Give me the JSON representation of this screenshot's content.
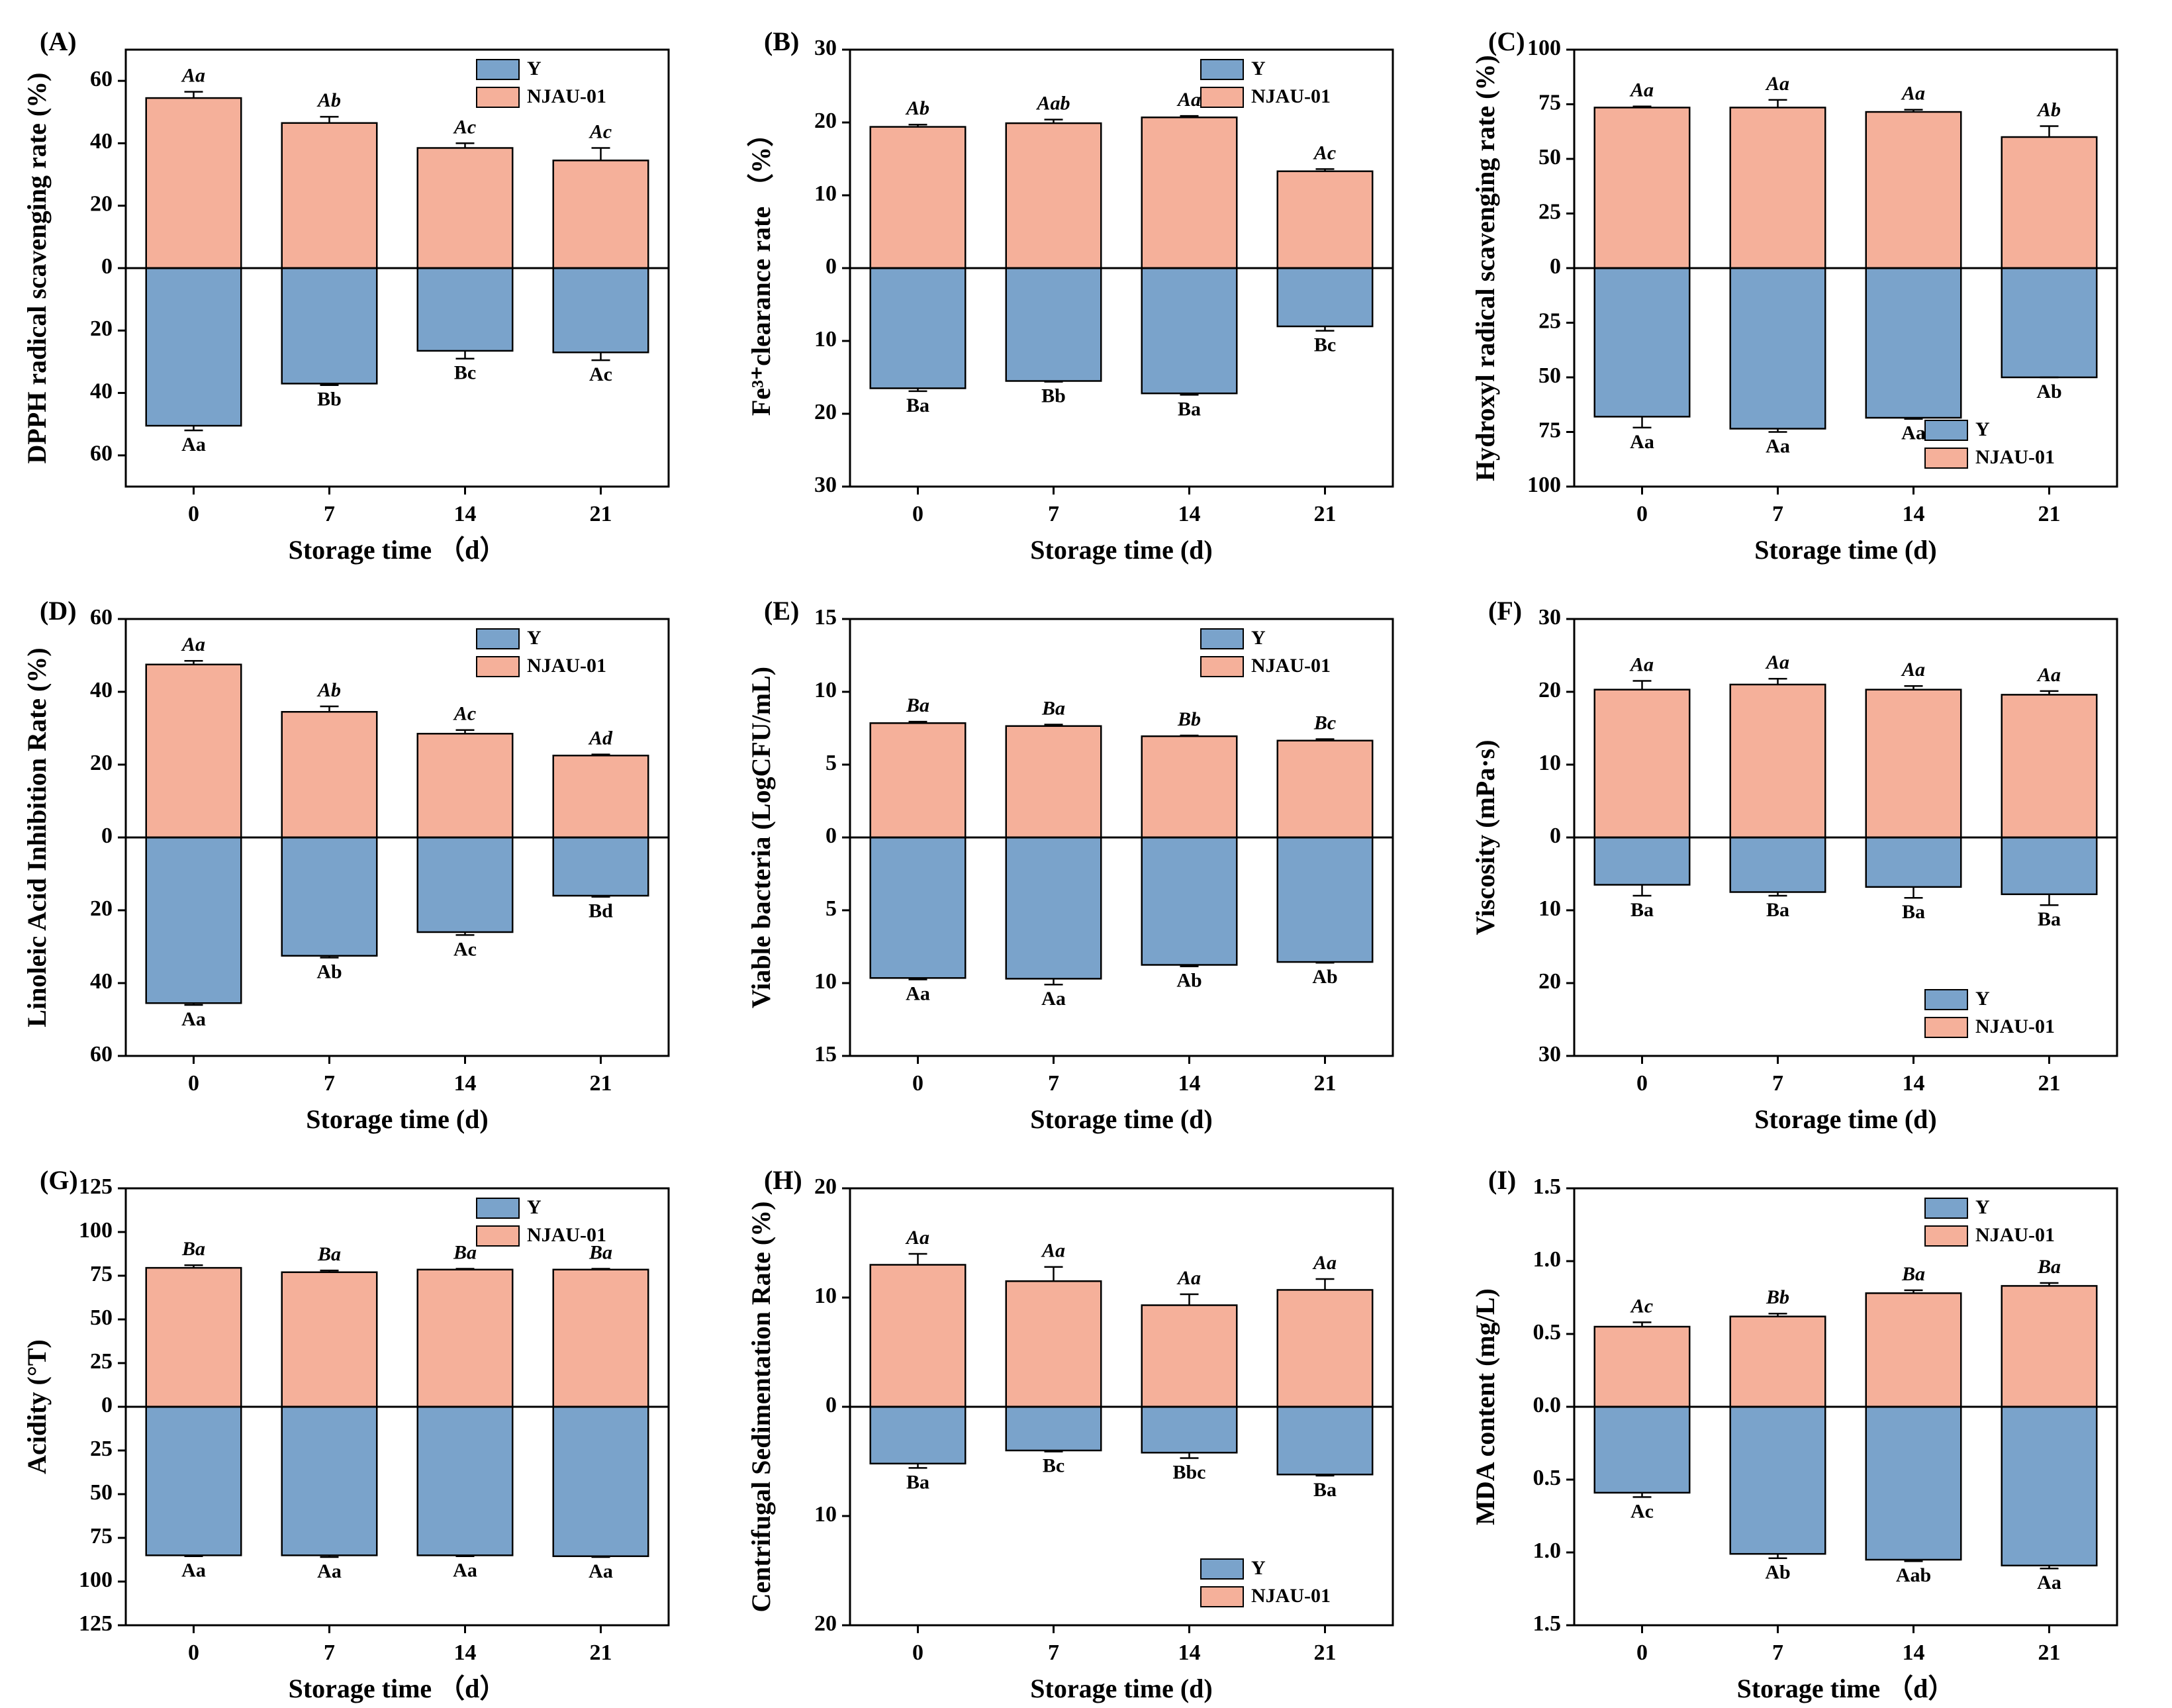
{
  "chart_data": [
    {
      "type": "bar",
      "label": "(A)",
      "ylabel": "DPPH radical scavenging rate (%)",
      "xlabel": "Storage time （d）",
      "categories": [
        "0",
        "7",
        "14",
        "21"
      ],
      "legend": "top-right",
      "ylim": [
        -70,
        70
      ],
      "yticks": [
        {
          "value": 60,
          "label": "60"
        },
        {
          "value": 40,
          "label": "40"
        },
        {
          "value": 20,
          "label": "20"
        },
        0,
        {
          "value": -20,
          "label": "20"
        },
        {
          "value": -40,
          "label": "40"
        },
        {
          "value": -60,
          "label": "60"
        }
      ],
      "series": [
        {
          "name": "Y",
          "color": "#7aa3cb",
          "values": [
            -50.5,
            -37,
            -26.5,
            -27
          ],
          "errors": [
            1.5,
            0.5,
            2.5,
            2.5
          ],
          "letters": [
            "Aa",
            "Bb",
            "Bc",
            "Ac"
          ]
        },
        {
          "name": "NJAU-01",
          "color": "#f5b09a",
          "values": [
            54.5,
            46.5,
            38.5,
            34.5
          ],
          "errors": [
            2,
            2,
            1.5,
            4
          ],
          "letters": [
            "Aa",
            "Ab",
            "Ac",
            "Ac"
          ]
        }
      ]
    },
    {
      "type": "bar",
      "label": "(B)",
      "ylabel": "Fe³⁺clearance rate （%）",
      "xlabel": "Storage time (d)",
      "categories": [
        "0",
        "7",
        "14",
        "21"
      ],
      "legend": "top-right",
      "ylim": [
        -30,
        30
      ],
      "yticks": [
        30,
        20,
        10,
        0,
        {
          "value": -10,
          "label": "10"
        },
        {
          "value": -20,
          "label": "20"
        },
        {
          "value": -30,
          "label": "30"
        }
      ],
      "series": [
        {
          "name": "Y",
          "color": "#7aa3cb",
          "values": [
            -16.5,
            -15.5,
            -17.2,
            -8
          ],
          "errors": [
            0.4,
            0.1,
            0.2,
            0.6
          ],
          "letters": [
            "Ba",
            "Bb",
            "Ba",
            "Bc"
          ]
        },
        {
          "name": "NJAU-01",
          "color": "#f5b09a",
          "values": [
            19.4,
            19.9,
            20.7,
            13.3
          ],
          "errors": [
            0.3,
            0.5,
            0.2,
            0.3
          ],
          "letters": [
            "Ab",
            "Aab",
            "Aa",
            "Ac"
          ]
        }
      ]
    },
    {
      "type": "bar",
      "label": "(C)",
      "ylabel": "Hydroxyl radical scavenging rate (%)",
      "xlabel": "Storage time (d)",
      "categories": [
        "0",
        "7",
        "14",
        "21"
      ],
      "legend": "bottom-right",
      "ylim": [
        -100,
        100
      ],
      "yticks": [
        100,
        75,
        50,
        25,
        0,
        {
          "value": -25,
          "label": "25"
        },
        {
          "value": -50,
          "label": "50"
        },
        {
          "value": -75,
          "label": "75"
        },
        {
          "value": -100,
          "label": "100"
        }
      ],
      "series": [
        {
          "name": "Y",
          "color": "#7aa3cb",
          "values": [
            -68,
            -73.5,
            -68.5,
            -50
          ],
          "errors": [
            5,
            1.5,
            0.5,
            0
          ],
          "letters": [
            "Aa",
            "Aa",
            "Aa",
            "Ab"
          ]
        },
        {
          "name": "NJAU-01",
          "color": "#f5b09a",
          "values": [
            73.5,
            73.5,
            71.5,
            60
          ],
          "errors": [
            0.5,
            3.5,
            1,
            5
          ],
          "letters": [
            "Aa",
            "Aa",
            "Aa",
            "Ab"
          ]
        }
      ]
    },
    {
      "type": "bar",
      "label": "(D)",
      "ylabel": "Linoleic Acid Inhibition Rate (%)",
      "xlabel": "Storage time (d)",
      "categories": [
        "0",
        "7",
        "14",
        "21"
      ],
      "legend": "top-right",
      "ylim": [
        -60,
        60
      ],
      "yticks": [
        60,
        40,
        20,
        0,
        {
          "value": -20,
          "label": "20"
        },
        {
          "value": -40,
          "label": "40"
        },
        {
          "value": -60,
          "label": "60"
        }
      ],
      "series": [
        {
          "name": "Y",
          "color": "#7aa3cb",
          "values": [
            -45.5,
            -32.5,
            -26,
            -16
          ],
          "errors": [
            0.5,
            0.5,
            0.8,
            0.3
          ],
          "letters": [
            "Aa",
            "Ab",
            "Ac",
            "Bd"
          ]
        },
        {
          "name": "NJAU-01",
          "color": "#f5b09a",
          "values": [
            47.5,
            34.5,
            28.5,
            22.5
          ],
          "errors": [
            1,
            1.5,
            1,
            0.3
          ],
          "letters": [
            "Aa",
            "Ab",
            "Ac",
            "Ad"
          ]
        }
      ]
    },
    {
      "type": "bar",
      "label": "(E)",
      "ylabel": "Viable bacteria (LogCFU/mL)",
      "xlabel": "Storage time (d)",
      "categories": [
        "0",
        "7",
        "14",
        "21"
      ],
      "legend": "top-right",
      "ylim": [
        -15,
        15
      ],
      "yticks": [
        15,
        10,
        5,
        0,
        {
          "value": -5,
          "label": "5"
        },
        {
          "value": -10,
          "label": "10"
        },
        {
          "value": -15,
          "label": "15"
        }
      ],
      "series": [
        {
          "name": "Y",
          "color": "#7aa3cb",
          "values": [
            -9.65,
            -9.7,
            -8.75,
            -8.55
          ],
          "errors": [
            0.1,
            0.4,
            0.1,
            0.05
          ],
          "letters": [
            "Aa",
            "Aa",
            "Ab",
            "Ab"
          ]
        },
        {
          "name": "NJAU-01",
          "color": "#f5b09a",
          "values": [
            7.85,
            7.65,
            6.95,
            6.65
          ],
          "errors": [
            0.1,
            0.1,
            0.05,
            0.1
          ],
          "letters": [
            "Ba",
            "Ba",
            "Bb",
            "Bc"
          ]
        }
      ]
    },
    {
      "type": "bar",
      "label": "(F)",
      "ylabel": "Viscosity (mPa·s)",
      "xlabel": "Storage time (d)",
      "categories": [
        "0",
        "7",
        "14",
        "21"
      ],
      "legend": "bottom-right",
      "ylim": [
        -30,
        30
      ],
      "yticks": [
        30,
        20,
        10,
        0,
        {
          "value": -10,
          "label": "10"
        },
        {
          "value": -20,
          "label": "20"
        },
        {
          "value": -30,
          "label": "30"
        }
      ],
      "series": [
        {
          "name": "Y",
          "color": "#7aa3cb",
          "values": [
            -6.5,
            -7.5,
            -6.8,
            -7.8
          ],
          "errors": [
            1.5,
            0.5,
            1.5,
            1.5
          ],
          "letters": [
            "Ba",
            "Ba",
            "Ba",
            "Ba"
          ]
        },
        {
          "name": "NJAU-01",
          "color": "#f5b09a",
          "values": [
            20.3,
            21,
            20.3,
            19.6
          ],
          "errors": [
            1.2,
            0.8,
            0.5,
            0.5
          ],
          "letters": [
            "Aa",
            "Aa",
            "Aa",
            "Aa"
          ]
        }
      ]
    },
    {
      "type": "bar",
      "label": "(G)",
      "ylabel": "Acidity (°T)",
      "xlabel": "Storage time （d）",
      "categories": [
        "0",
        "7",
        "14",
        "21"
      ],
      "legend": "top-right",
      "ylim": [
        -125,
        125
      ],
      "yticks": [
        125,
        100,
        75,
        50,
        25,
        0,
        {
          "value": -25,
          "label": "25"
        },
        {
          "value": -50,
          "label": "50"
        },
        {
          "value": -75,
          "label": "75"
        },
        {
          "value": -100,
          "label": "100"
        },
        {
          "value": -125,
          "label": "125"
        }
      ],
      "series": [
        {
          "name": "Y",
          "color": "#7aa3cb",
          "values": [
            -85,
            -85,
            -85,
            -85.5
          ],
          "errors": [
            0.5,
            1,
            0.5,
            0.5
          ],
          "letters": [
            "Aa",
            "Aa",
            "Aa",
            "Aa"
          ]
        },
        {
          "name": "NJAU-01",
          "color": "#f5b09a",
          "values": [
            79.5,
            77,
            78.5,
            78.5
          ],
          "errors": [
            1.5,
            1,
            0.5,
            0.5
          ],
          "letters": [
            "Ba",
            "Ba",
            "Ba",
            "Ba"
          ]
        }
      ]
    },
    {
      "type": "bar",
      "label": "(H)",
      "ylabel": "Centrifugal Sedimentation Rate (%)",
      "xlabel": "Storage time (d)",
      "categories": [
        "0",
        "7",
        "14",
        "21"
      ],
      "legend": "bottom-right",
      "ylim": [
        -20,
        20
      ],
      "yticks": [
        20,
        10,
        0,
        {
          "value": -10,
          "label": "10"
        },
        {
          "value": -20,
          "label": "20"
        }
      ],
      "series": [
        {
          "name": "Y",
          "color": "#7aa3cb",
          "values": [
            -5.2,
            -4,
            -4.2,
            -6.2
          ],
          "errors": [
            0.4,
            0.1,
            0.5,
            0.1
          ],
          "letters": [
            "Ba",
            "Bc",
            "Bbc",
            "Ba"
          ]
        },
        {
          "name": "NJAU-01",
          "color": "#f5b09a",
          "values": [
            13,
            11.5,
            9.3,
            10.7
          ],
          "errors": [
            1,
            1.3,
            1,
            1
          ],
          "letters": [
            "Aa",
            "Aa",
            "Aa",
            "Aa"
          ]
        }
      ]
    },
    {
      "type": "bar",
      "label": "(I)",
      "ylabel": "MDA content (mg/L)",
      "xlabel": "Storage time （d）",
      "categories": [
        "0",
        "7",
        "14",
        "21"
      ],
      "legend": "top-right",
      "ylim": [
        -1.5,
        1.5
      ],
      "yticks": [
        1.5,
        {
          "value": 1.0,
          "label": "1.0"
        },
        0.5,
        {
          "value": 0,
          "label": "0.0"
        },
        {
          "value": -0.5,
          "label": "0.5"
        },
        {
          "value": -1.0,
          "label": "1.0"
        },
        {
          "value": -1.5,
          "label": "1.5"
        }
      ],
      "series": [
        {
          "name": "Y",
          "color": "#7aa3cb",
          "values": [
            -0.59,
            -1.01,
            -1.05,
            -1.09
          ],
          "errors": [
            0.03,
            0.03,
            0.01,
            0.02
          ],
          "letters": [
            "Ac",
            "Ab",
            "Aab",
            "Aa"
          ]
        },
        {
          "name": "NJAU-01",
          "color": "#f5b09a",
          "values": [
            0.55,
            0.62,
            0.78,
            0.83
          ],
          "errors": [
            0.03,
            0.02,
            0.02,
            0.02
          ],
          "letters": [
            "Ac",
            "Bb",
            "Ba",
            "Ba"
          ]
        }
      ]
    }
  ]
}
